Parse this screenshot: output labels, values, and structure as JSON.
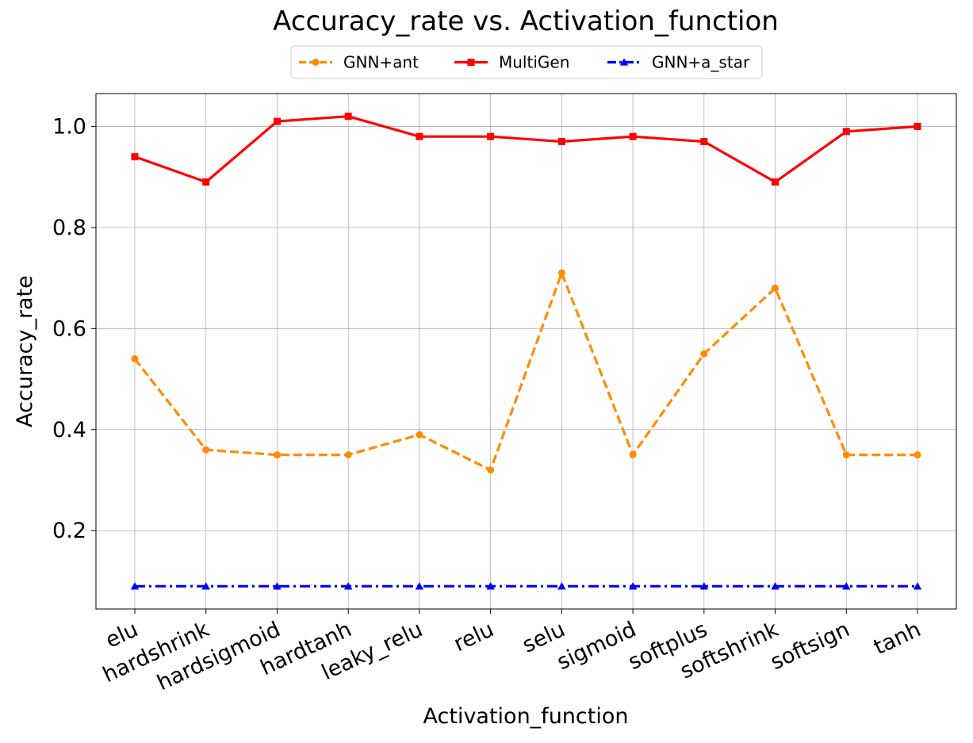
{
  "chart_data": {
    "type": "line",
    "title": "Accuracy_rate vs. Activation_function",
    "xlabel": "Activation_function",
    "ylabel": "Accuracy_rate",
    "categories": [
      "elu",
      "hardshrink",
      "hardsigmoid",
      "hardtanh",
      "leaky_relu",
      "relu",
      "selu",
      "sigmoid",
      "softplus",
      "softshrink",
      "softsign",
      "tanh"
    ],
    "ylim": [
      0.045,
      1.065
    ],
    "yticks": [
      0.2,
      0.4,
      0.6,
      0.8,
      1.0
    ],
    "ytick_labels": [
      "0.2",
      "0.4",
      "0.6",
      "0.8",
      "1.0"
    ],
    "grid": true,
    "legend_position": "top-center",
    "series": [
      {
        "name": "GNN+ant",
        "color": "#ff8c00",
        "line_style": "dashed",
        "marker": "circle",
        "values": [
          0.54,
          0.36,
          0.35,
          0.35,
          0.39,
          0.32,
          0.71,
          0.35,
          0.55,
          0.68,
          0.35,
          0.35
        ]
      },
      {
        "name": "MultiGen",
        "color": "#ff0000",
        "line_style": "solid",
        "marker": "square",
        "values": [
          0.94,
          0.89,
          1.01,
          1.02,
          0.98,
          0.98,
          0.97,
          0.98,
          0.97,
          0.89,
          0.99,
          1.0
        ]
      },
      {
        "name": "GNN+a_star",
        "color": "#0000ff",
        "line_style": "dashdot",
        "marker": "triangle",
        "values": [
          0.09,
          0.09,
          0.09,
          0.09,
          0.09,
          0.09,
          0.09,
          0.09,
          0.09,
          0.09,
          0.09,
          0.09
        ]
      }
    ]
  }
}
